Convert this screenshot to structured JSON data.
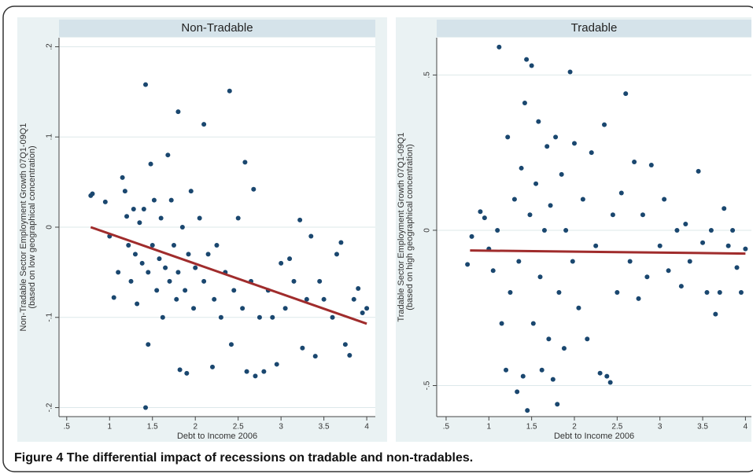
{
  "chart_data": [
    {
      "type": "scatter",
      "title": "Non-Tradable",
      "x_label": "Debt to Income 2006",
      "y_label": [
        "Non-Tradable Sector Employment Growth 07Q1-09Q1",
        "(based on low geographical concentration)"
      ],
      "xlim": [
        0.41,
        4.1
      ],
      "ylim": [
        -0.21,
        0.21
      ],
      "xticks": [
        {
          "value": 0.5,
          "label": ".5"
        },
        1,
        1.5,
        2,
        2.5,
        3,
        3.5,
        4
      ],
      "yticks": [
        {
          "value": -0.2,
          "label": "-.2"
        },
        {
          "value": -0.1,
          "label": "-.1"
        },
        0,
        {
          "value": 0.1,
          "label": ".1"
        },
        {
          "value": 0.2,
          "label": ".2"
        }
      ],
      "grid": true,
      "series": [
        {
          "color": "#1a476f",
          "x": [
            0.78,
            0.8,
            0.95,
            1.0,
            1.05,
            1.1,
            1.15,
            1.18,
            1.2,
            1.22,
            1.25,
            1.28,
            1.3,
            1.32,
            1.35,
            1.38,
            1.4,
            1.42,
            1.42,
            1.45,
            1.45,
            1.48,
            1.5,
            1.52,
            1.55,
            1.58,
            1.6,
            1.62,
            1.65,
            1.68,
            1.7,
            1.72,
            1.75,
            1.78,
            1.8,
            1.8,
            1.82,
            1.85,
            1.88,
            1.9,
            1.92,
            1.95,
            1.98,
            2.0,
            2.05,
            2.1,
            2.1,
            2.15,
            2.2,
            2.22,
            2.25,
            2.3,
            2.35,
            2.4,
            2.42,
            2.45,
            2.5,
            2.55,
            2.58,
            2.6,
            2.65,
            2.68,
            2.7,
            2.75,
            2.8,
            2.85,
            2.9,
            2.95,
            3.0,
            3.05,
            3.1,
            3.15,
            3.22,
            3.25,
            3.3,
            3.35,
            3.4,
            3.45,
            3.5,
            3.6,
            3.65,
            3.7,
            3.75,
            3.8,
            3.85,
            3.9,
            3.95,
            4.0
          ],
          "values": [
            0.035,
            0.037,
            0.028,
            -0.01,
            -0.078,
            -0.05,
            0.055,
            0.04,
            0.012,
            -0.02,
            -0.06,
            0.02,
            -0.03,
            -0.085,
            0.005,
            -0.04,
            0.02,
            0.158,
            -0.2,
            -0.13,
            -0.05,
            0.07,
            -0.02,
            0.03,
            -0.07,
            -0.035,
            0.01,
            -0.1,
            -0.045,
            0.08,
            -0.06,
            0.03,
            -0.02,
            -0.08,
            0.128,
            -0.05,
            -0.158,
            0.0,
            -0.07,
            -0.162,
            -0.03,
            0.04,
            -0.09,
            -0.045,
            0.01,
            0.114,
            -0.06,
            -0.03,
            -0.155,
            -0.08,
            -0.02,
            -0.1,
            -0.05,
            0.151,
            -0.13,
            -0.07,
            0.01,
            -0.09,
            0.072,
            -0.16,
            -0.06,
            0.042,
            -0.165,
            -0.1,
            -0.16,
            -0.07,
            -0.1,
            -0.152,
            -0.04,
            -0.09,
            -0.035,
            -0.06,
            0.008,
            -0.134,
            -0.08,
            -0.01,
            -0.143,
            -0.06,
            -0.08,
            -0.1,
            -0.03,
            -0.017,
            -0.13,
            -0.142,
            -0.08,
            -0.068,
            -0.095,
            -0.09
          ]
        },
        {
          "type": "line",
          "color": "#a02c2c",
          "x": [
            0.78,
            4.0
          ],
          "values": [
            0.0,
            -0.107
          ]
        }
      ]
    },
    {
      "type": "scatter",
      "title": "Tradable",
      "x_label": "Debt to Income 2006",
      "y_label": [
        "Tradable Sector Employment Growth 07Q1-09Q1",
        "(based on high geographical concentration)"
      ],
      "xlim": [
        0.39,
        4.07
      ],
      "ylim": [
        -0.6,
        0.62
      ],
      "xticks": [
        {
          "value": 0.5,
          "label": ".5"
        },
        1,
        1.5,
        2,
        2.5,
        3,
        3.5,
        4
      ],
      "yticks": [
        {
          "value": -0.5,
          "label": "-.5"
        },
        0,
        {
          "value": 0.5,
          "label": ".5"
        }
      ],
      "grid": true,
      "series": [
        {
          "color": "#1a476f",
          "x": [
            0.75,
            0.8,
            0.9,
            0.95,
            1.0,
            1.05,
            1.1,
            1.12,
            1.15,
            1.2,
            1.22,
            1.25,
            1.3,
            1.33,
            1.35,
            1.38,
            1.4,
            1.42,
            1.44,
            1.45,
            1.48,
            1.5,
            1.52,
            1.55,
            1.58,
            1.6,
            1.62,
            1.65,
            1.68,
            1.7,
            1.72,
            1.75,
            1.78,
            1.8,
            1.82,
            1.85,
            1.88,
            1.9,
            1.95,
            1.98,
            2.0,
            2.05,
            2.1,
            2.15,
            2.2,
            2.25,
            2.3,
            2.35,
            2.38,
            2.42,
            2.45,
            2.5,
            2.55,
            2.6,
            2.65,
            2.7,
            2.75,
            2.8,
            2.85,
            2.9,
            3.0,
            3.05,
            3.1,
            3.2,
            3.25,
            3.3,
            3.35,
            3.45,
            3.5,
            3.55,
            3.6,
            3.65,
            3.7,
            3.75,
            3.8,
            3.85,
            3.9,
            3.95,
            4.0
          ],
          "values": [
            -0.11,
            -0.02,
            0.06,
            0.04,
            -0.06,
            -0.13,
            0.0,
            0.59,
            -0.3,
            -0.45,
            0.3,
            -0.2,
            0.1,
            -0.52,
            -0.1,
            0.2,
            -0.47,
            0.41,
            0.55,
            -0.58,
            0.05,
            0.53,
            -0.3,
            0.15,
            0.35,
            -0.15,
            -0.45,
            0.0,
            0.27,
            -0.35,
            0.08,
            -0.48,
            0.3,
            -0.56,
            -0.2,
            0.18,
            -0.38,
            0.0,
            0.51,
            -0.1,
            0.28,
            -0.25,
            0.1,
            -0.35,
            0.25,
            -0.05,
            -0.46,
            0.34,
            -0.47,
            -0.49,
            0.05,
            -0.2,
            0.12,
            0.44,
            -0.1,
            0.22,
            -0.22,
            0.05,
            -0.15,
            0.21,
            -0.05,
            0.1,
            -0.13,
            0.0,
            -0.18,
            0.02,
            -0.1,
            0.19,
            -0.04,
            -0.2,
            0.0,
            -0.27,
            -0.2,
            0.07,
            -0.05,
            0.0,
            -0.12,
            -0.2,
            -0.06
          ]
        },
        {
          "type": "line",
          "color": "#a02c2c",
          "x": [
            0.78,
            4.0
          ],
          "values": [
            -0.065,
            -0.075
          ]
        }
      ]
    }
  ],
  "caption": {
    "label": "Figure 4",
    "text": "The differential impact of recessions on tradable and non-tradables."
  }
}
